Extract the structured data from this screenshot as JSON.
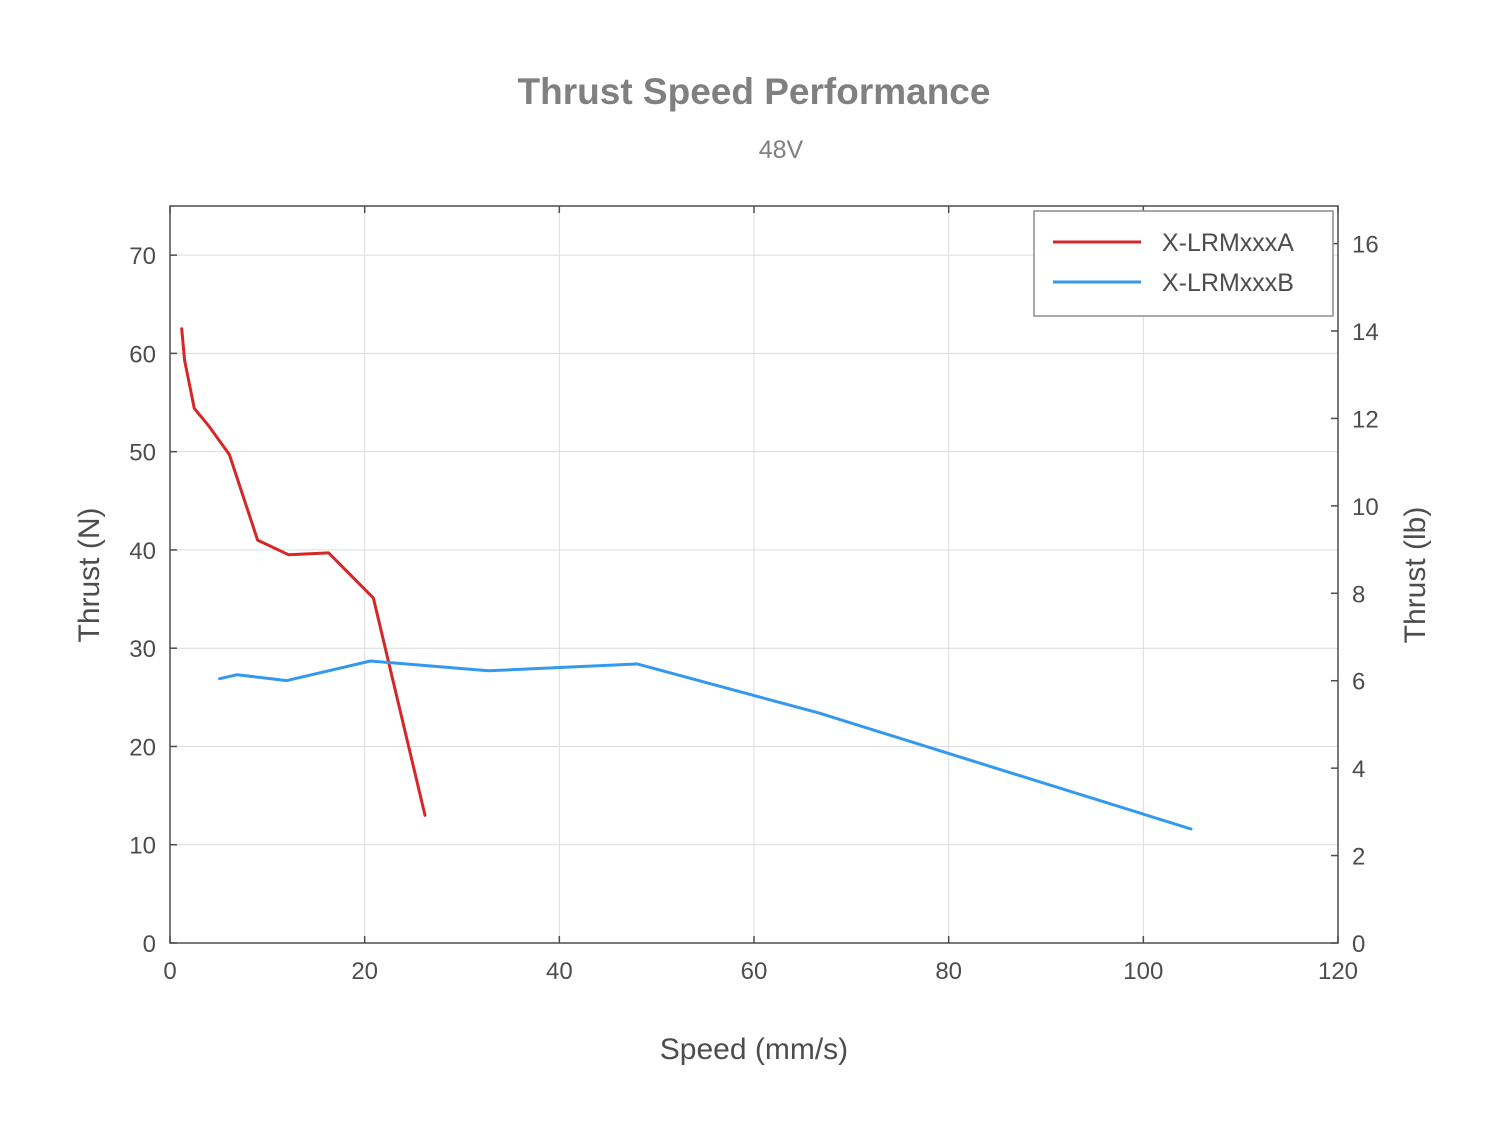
{
  "chart_data": {
    "type": "line",
    "title": "Thrust Speed Performance",
    "subtitle": "48V",
    "xlabel": "Speed (mm/s)",
    "ylabel": "Thrust (N)",
    "ylabel_right": "Thrust (lb)",
    "xlim": [
      0,
      120
    ],
    "ylim": [
      0,
      75
    ],
    "ylim_right": [
      0,
      16.86
    ],
    "x_ticks": [
      0,
      20,
      40,
      60,
      80,
      100,
      120
    ],
    "y_ticks": [
      0,
      10,
      20,
      30,
      40,
      50,
      60,
      70
    ],
    "y_ticks_right": [
      0,
      2,
      4,
      6,
      8,
      10,
      12,
      14,
      16
    ],
    "grid": true,
    "legend_position": "top-right",
    "series": [
      {
        "name": "X-LRMxxxA",
        "color": "#d62728",
        "x": [
          1.2,
          1.5,
          2.5,
          4.0,
          6.1,
          9.0,
          12.2,
          16.3,
          20.9,
          26.2
        ],
        "y": [
          62.5,
          59.3,
          54.4,
          52.6,
          49.7,
          41.0,
          39.5,
          39.7,
          35.1,
          13.0
        ]
      },
      {
        "name": "X-LRMxxxB",
        "color": "#3399ee",
        "x": [
          5.1,
          6.9,
          12.0,
          20.6,
          32.7,
          48.0,
          66.7,
          104.9
        ],
        "y": [
          26.9,
          27.3,
          26.7,
          28.7,
          27.7,
          28.4,
          23.4,
          11.6
        ]
      }
    ]
  }
}
